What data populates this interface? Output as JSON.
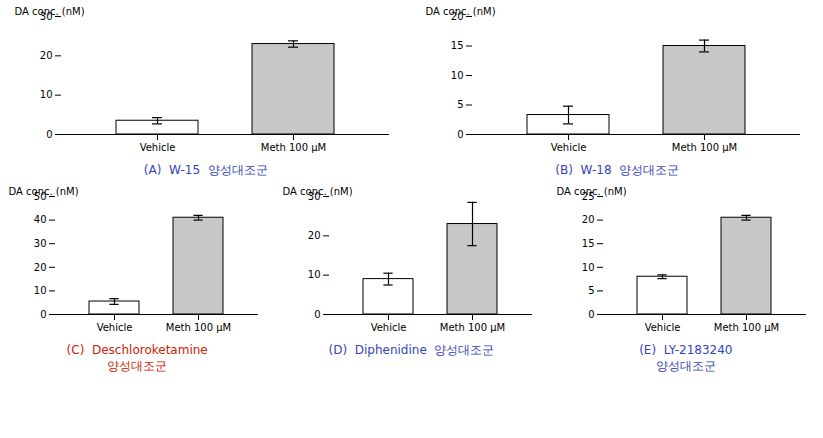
{
  "chart_data": [
    {
      "type": "bar",
      "title": "(A)  W-15  양성대조군",
      "title_color": "#3344bb",
      "categories": [
        "Vehicle",
        "Meth 100 μM"
      ],
      "values": [
        3.5,
        23.0
      ],
      "errors": [
        0.8,
        0.8
      ],
      "colors": [
        "#ffffff",
        "#c8c8c8"
      ],
      "ylabel": "DA conc. (nM)",
      "ylim": [
        0,
        30
      ],
      "yticks": [
        0,
        10,
        20,
        30
      ]
    },
    {
      "type": "bar",
      "title": "(B)  W-18  양성대조군",
      "title_color": "#3344bb",
      "categories": [
        "Vehicle",
        "Meth 100 μM"
      ],
      "values": [
        3.3,
        15.0
      ],
      "errors": [
        1.5,
        1.0
      ],
      "colors": [
        "#ffffff",
        "#c8c8c8"
      ],
      "ylabel": "DA conc. (nM)",
      "ylim": [
        0,
        20
      ],
      "yticks": [
        0,
        5,
        10,
        15,
        20
      ]
    },
    {
      "type": "bar",
      "title": "(C)  Deschloroketamine",
      "subtitle": "양성대조군",
      "title_color": "#cc2200",
      "categories": [
        "Vehicle",
        "Meth 100 μM"
      ],
      "values": [
        5.5,
        41.0
      ],
      "errors": [
        1.2,
        1.0
      ],
      "colors": [
        "#ffffff",
        "#c8c8c8"
      ],
      "ylabel": "DA conc. (nM)",
      "ylim": [
        0,
        50
      ],
      "yticks": [
        0,
        10,
        20,
        30,
        40,
        50
      ]
    },
    {
      "type": "bar",
      "title": "(D)  Diphenidine  양성대조군",
      "title_color": "#3344bb",
      "categories": [
        "Vehicle",
        "Meth 100 μM"
      ],
      "values": [
        9.0,
        23.0
      ],
      "errors": [
        1.5,
        5.5
      ],
      "colors": [
        "#ffffff",
        "#c8c8c8"
      ],
      "ylabel": "DA conc. (nM)",
      "ylim": [
        0,
        30
      ],
      "yticks": [
        0,
        10,
        20,
        30
      ]
    },
    {
      "type": "bar",
      "title": "(E)  LY-2183240",
      "subtitle": "양성대조군",
      "title_color": "#3344bb",
      "categories": [
        "Vehicle",
        "Meth 100 μM"
      ],
      "values": [
        8.0,
        20.5
      ],
      "errors": [
        0.4,
        0.5
      ],
      "colors": [
        "#ffffff",
        "#c8c8c8"
      ],
      "ylabel": "DA conc. (nM)",
      "ylim": [
        0,
        25
      ],
      "yticks": [
        0,
        5,
        10,
        15,
        20,
        25
      ]
    }
  ]
}
